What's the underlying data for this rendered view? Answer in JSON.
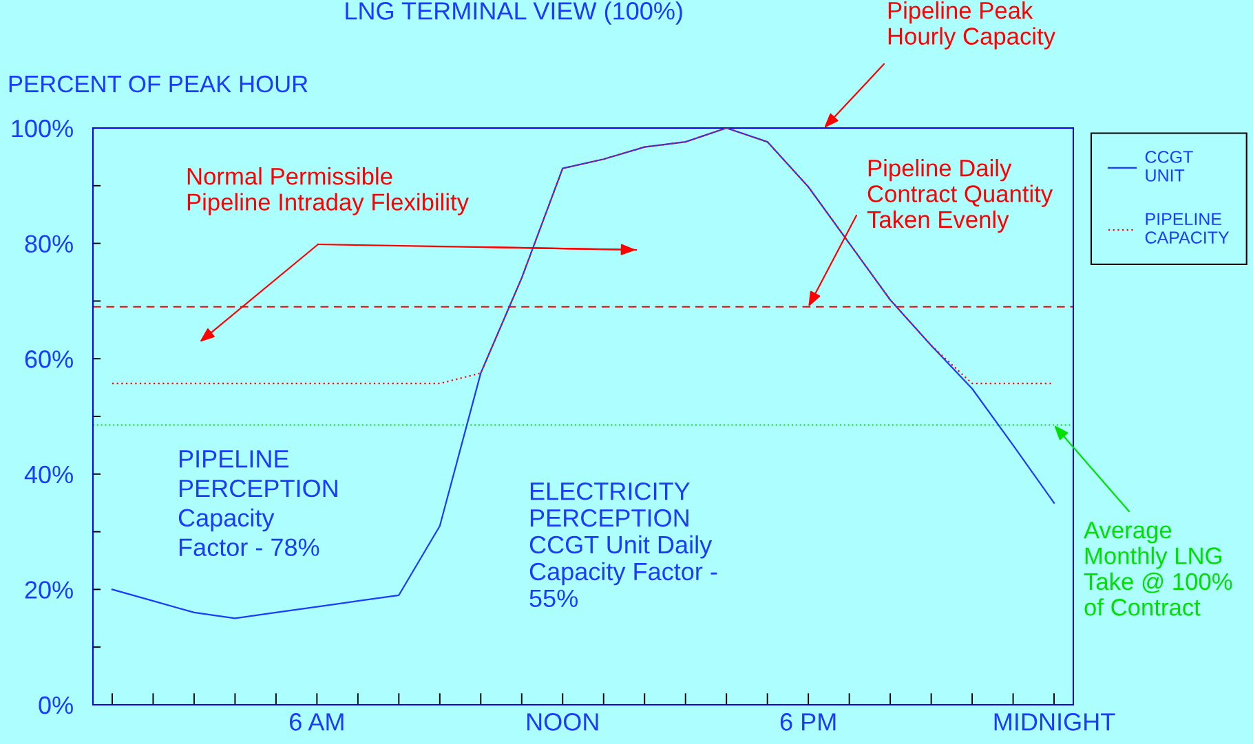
{
  "chart_data": {
    "type": "line",
    "title": "LNG TERMINAL VIEW (100%)",
    "ylabel": "PERCENT OF PEAK HOUR",
    "categories": [
      null,
      null,
      null,
      null,
      null,
      "6 AM",
      null,
      null,
      null,
      null,
      null,
      "NOON",
      null,
      null,
      null,
      null,
      null,
      "6 PM",
      null,
      null,
      null,
      null,
      null,
      "MIDNIGHT"
    ],
    "series": [
      {
        "name": "CCGT\nUNIT",
        "color": "#1a3cff",
        "line_style": "solid",
        "values": [
          20,
          18,
          16,
          15,
          16,
          17,
          18,
          19,
          31,
          57.5,
          74,
          93,
          94.6,
          96.7,
          97.6,
          100,
          97.6,
          89.8,
          80,
          70.2,
          62.3,
          54.8,
          45,
          35
        ]
      },
      {
        "name": "PIPELINE\nCAPACITY",
        "color": "#ff0000",
        "line_style": "dotted",
        "values": [
          55.7,
          55.7,
          55.7,
          55.7,
          55.7,
          55.7,
          55.7,
          55.7,
          55.7,
          57.5,
          74,
          93,
          94.6,
          96.7,
          97.6,
          100,
          97.6,
          89.8,
          80,
          70.2,
          62.3,
          55.7,
          55.7,
          55.7
        ]
      }
    ],
    "ylim": [
      0,
      100
    ],
    "yticks": [
      {
        "value": 0,
        "label": "0%"
      },
      {
        "value": 10,
        "label": null
      },
      {
        "value": 20,
        "label": "20%"
      },
      {
        "value": 30,
        "label": null
      },
      {
        "value": 40,
        "label": "40%"
      },
      {
        "value": 50,
        "label": null
      },
      {
        "value": 60,
        "label": "60%"
      },
      {
        "value": 70,
        "label": null
      },
      {
        "value": 80,
        "label": "80%"
      },
      {
        "value": 90,
        "label": null
      },
      {
        "value": 100,
        "label": "100%"
      }
    ],
    "ref_lines": [
      {
        "axis": "y",
        "value": 69,
        "label": null,
        "color": "#ff0000",
        "line_style": "dashed"
      },
      {
        "axis": "y",
        "value": 48.5,
        "label": null,
        "color": "#00e000",
        "line_style": "dotted"
      }
    ],
    "annotations": [
      "Pipeline Peak\nHourly Capacity",
      "Normal Permissible\nPipeline Intraday Flexibility",
      {
        "text": "Pipeline Daily\nContract Quantity\nTaken Evenly",
        "x": "6 PM",
        "y": 69
      },
      {
        "text": "Average\nMonthly LNG\nTake @ 100%\nof Contract",
        "x": "MIDNIGHT",
        "y": 48.5
      },
      "PIPELINE\nPERCEPTION\nCapacity\nFactor - 78%",
      "ELECTRICITY\nPERCEPTION\nCCGT Unit Daily\nCapacity Factor -\n55%"
    ],
    "grid": false,
    "legend": "top right",
    "marker": "none"
  }
}
